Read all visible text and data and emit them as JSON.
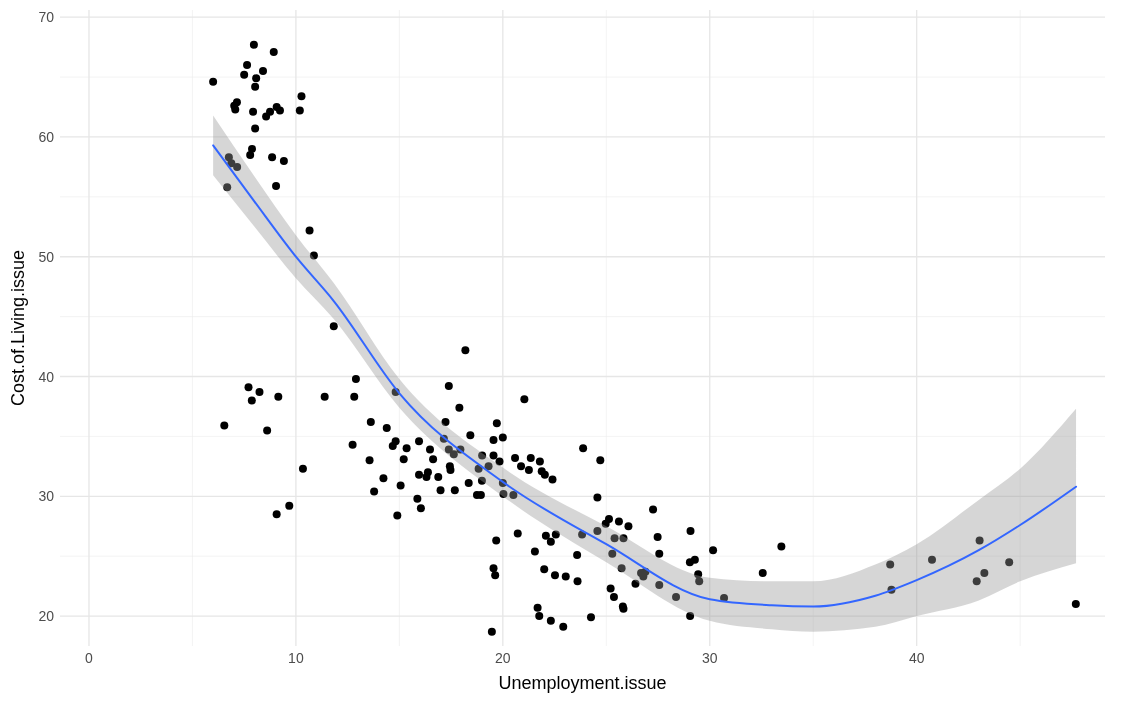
{
  "chart_data": {
    "type": "scatter",
    "xlabel": "Unemployment.issue",
    "ylabel": "Cost.of.Living.issue",
    "xlim": [
      -1.4,
      49.1
    ],
    "ylim": [
      17.5,
      70.6
    ],
    "xticks": [
      0,
      10,
      20,
      30,
      40
    ],
    "yticks": [
      20,
      30,
      40,
      50,
      60,
      70
    ],
    "grid": true,
    "marker": "circle",
    "series": [
      {
        "color": "#000000",
        "x": [
          7.97,
          8.93,
          7.64,
          7.5,
          8.41,
          8.08,
          8.03,
          6.0,
          7.15,
          7.02,
          7.07,
          7.93,
          8.56,
          8.75,
          9.07,
          9.23,
          10.27,
          10.19,
          8.03,
          7.88,
          7.79,
          8.85,
          9.42,
          6.76,
          6.88,
          7.16,
          6.68,
          9.04,
          10.66,
          10.87,
          7.71,
          8.24,
          7.87,
          9.15,
          11.39,
          6.54,
          8.61,
          10.34,
          9.68,
          9.07,
          11.83,
          18.19,
          12.9,
          12.82,
          17.39,
          17.9,
          14.82,
          13.62,
          14.39,
          17.23,
          18.43,
          19.55,
          19.71,
          12.74,
          14.82,
          14.68,
          15.35,
          15.95,
          16.48,
          17.15,
          17.39,
          17.95,
          17.63,
          13.56,
          15.21,
          16.63,
          19.0,
          19.55,
          19.31,
          17.44,
          17.47,
          18.83,
          18.99,
          18.35,
          15.95,
          16.38,
          16.31,
          16.88,
          14.23,
          15.06,
          13.78,
          16.99,
          17.68,
          18.75,
          18.94,
          15.87,
          16.04,
          14.9,
          21.04,
          20.0,
          19.84,
          20.59,
          21.35,
          21.79,
          20.88,
          21.26,
          21.88,
          22.03,
          22.4,
          23.88,
          24.71,
          20.0,
          20.03,
          20.51,
          24.57,
          25.13,
          24.97,
          24.57,
          25.61,
          26.07,
          25.4,
          25.83,
          20.72,
          19.68,
          22.08,
          22.56,
          22.32,
          23.83,
          23.59,
          25.29,
          21.55,
          25.74,
          26.41,
          19.55,
          19.63,
          22.0,
          22.52,
          23.04,
          23.61,
          25.21,
          25.37,
          25.8,
          25.83,
          21.68,
          21.76,
          22.32,
          22.92,
          24.26,
          19.47,
          27.26,
          29.07,
          27.48,
          27.56,
          30.16,
          33.46,
          29.04,
          29.28,
          29.44,
          29.49,
          32.56,
          26.68,
          26.89,
          26.79,
          27.56,
          28.37,
          30.69,
          29.05,
          38.72,
          38.78,
          40.74,
          43.04,
          42.9,
          43.27,
          44.47,
          47.69
        ],
        "values": [
          67.7,
          67.1,
          66.0,
          65.2,
          65.5,
          64.9,
          64.2,
          64.6,
          62.9,
          62.6,
          62.3,
          62.1,
          61.7,
          62.1,
          62.5,
          62.2,
          63.4,
          62.2,
          60.7,
          59.0,
          58.5,
          58.3,
          58.0,
          58.3,
          57.8,
          57.5,
          55.8,
          55.9,
          52.2,
          50.1,
          39.1,
          38.7,
          38.0,
          38.3,
          38.3,
          35.9,
          35.5,
          32.3,
          29.2,
          28.5,
          44.2,
          42.2,
          39.8,
          38.3,
          39.2,
          37.4,
          38.7,
          36.2,
          35.7,
          36.2,
          35.1,
          34.7,
          36.1,
          34.3,
          34.6,
          34.2,
          34.0,
          34.6,
          33.9,
          34.8,
          33.9,
          33.9,
          33.5,
          33.0,
          33.1,
          33.1,
          33.4,
          33.4,
          32.5,
          32.5,
          32.2,
          32.3,
          31.3,
          31.1,
          31.8,
          32.0,
          31.6,
          31.6,
          31.5,
          30.9,
          30.4,
          30.5,
          30.5,
          30.1,
          30.1,
          29.8,
          29.0,
          28.4,
          38.1,
          34.9,
          32.9,
          33.2,
          33.2,
          32.9,
          32.5,
          32.2,
          32.1,
          31.8,
          31.4,
          34.0,
          33.0,
          31.1,
          30.2,
          30.1,
          29.9,
          28.1,
          27.7,
          27.1,
          27.9,
          27.5,
          26.5,
          26.5,
          26.9,
          26.3,
          26.7,
          26.8,
          26.2,
          26.8,
          25.1,
          25.2,
          25.4,
          24.0,
          22.7,
          24.0,
          23.4,
          23.9,
          23.4,
          23.3,
          22.9,
          22.3,
          21.6,
          20.8,
          20.6,
          20.7,
          20.0,
          19.6,
          19.1,
          19.9,
          18.7,
          28.9,
          27.1,
          26.6,
          25.2,
          25.5,
          25.8,
          24.5,
          24.7,
          23.5,
          22.9,
          23.6,
          23.6,
          23.7,
          23.3,
          22.6,
          21.6,
          21.5,
          20.0,
          24.3,
          22.2,
          24.7,
          26.3,
          22.9,
          23.6,
          24.5,
          21.0
        ]
      },
      {
        "type": "line",
        "color": "#3366ff",
        "marker": "none",
        "x": [
          6,
          8,
          10,
          11.83,
          15,
          20,
          25,
          30,
          33,
          35,
          38,
          40,
          43,
          45,
          47.7
        ],
        "values": [
          59.3,
          54.6,
          50.0,
          46.3,
          38.6,
          31.2,
          26.0,
          21.4,
          20.9,
          20.8,
          21.7,
          23.0,
          25.5,
          27.6,
          30.8
        ],
        "lower": [
          56.8,
          52.5,
          48.2,
          44.8,
          37.4,
          30.0,
          24.5,
          19.6,
          18.9,
          18.7,
          19.1,
          20.0,
          21.3,
          22.9,
          24.4
        ],
        "upper": [
          61.8,
          56.7,
          51.8,
          47.8,
          39.8,
          32.4,
          27.5,
          23.2,
          22.9,
          22.9,
          24.3,
          26.0,
          29.7,
          32.3,
          37.3
        ]
      }
    ]
  }
}
